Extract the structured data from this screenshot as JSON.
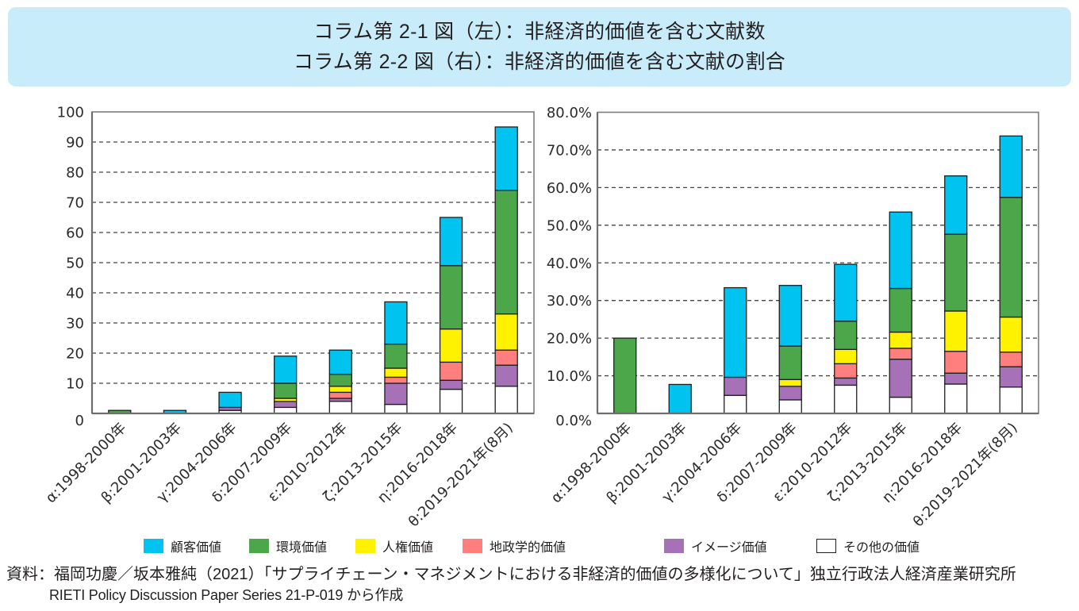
{
  "header": {
    "title_line1": "コラム第 2-1 図（左）：非経済的価値を含む文献数",
    "title_line2": "コラム第 2-2 図（右）：非経済的価値を含む文献の割合"
  },
  "legend": [
    {
      "key": "customer",
      "label": "顧客価値",
      "color": "#00c3f0"
    },
    {
      "key": "environment",
      "label": "環境価値",
      "color": "#4ca64a"
    },
    {
      "key": "human-rights",
      "label": "人権価値",
      "color": "#fff200"
    },
    {
      "key": "geopolitical",
      "label": "地政学的価値",
      "color": "#ff7e7e"
    },
    {
      "key": "image",
      "label": "イメージ価値",
      "color": "#a671b6"
    },
    {
      "key": "other",
      "label": "その他の価値",
      "color": "#ffffff"
    }
  ],
  "chart_data": [
    {
      "type": "bar",
      "stacked": true,
      "title": "コラム第 2-1 図（左）：非経済的価値を含む文献数",
      "xlabel": "",
      "ylabel": "",
      "ylim": [
        0,
        100
      ],
      "yticks": [
        0,
        10,
        20,
        30,
        40,
        50,
        60,
        70,
        80,
        90,
        100
      ],
      "ytick_labels": [
        "0",
        "10",
        "20",
        "30",
        "40",
        "50",
        "60",
        "70",
        "80",
        "90",
        "100"
      ],
      "grid": true,
      "legend_position": "bottom",
      "categories": [
        "α:1998-2000年",
        "β:2001-2003年",
        "γ:2004-2006年",
        "δ:2007-2009年",
        "ε:2010-2012年",
        "ζ:2013-2015年",
        "η:2016-2018年",
        "θ:2019-2021年(8月)"
      ],
      "series": [
        {
          "key": "customer",
          "name": "顧客価値",
          "values": [
            0,
            1,
            5,
            9,
            8,
            14,
            16,
            21
          ]
        },
        {
          "key": "environment",
          "name": "環境価値",
          "values": [
            1,
            0,
            0,
            5,
            4,
            8,
            21,
            41
          ]
        },
        {
          "key": "human-rights",
          "name": "人権価値",
          "values": [
            0,
            0,
            0,
            1,
            2,
            3,
            11,
            12
          ]
        },
        {
          "key": "geopolitical",
          "name": "地政学的価値",
          "values": [
            0,
            0,
            0,
            0,
            2,
            2,
            6,
            5
          ]
        },
        {
          "key": "image",
          "name": "イメージ価値",
          "values": [
            0,
            0,
            1,
            2,
            1,
            7,
            3,
            7
          ]
        },
        {
          "key": "other",
          "name": "その他の価値",
          "values": [
            0,
            0,
            1,
            2,
            4,
            3,
            8,
            9
          ]
        }
      ],
      "totals": [
        1,
        1,
        7,
        19,
        21,
        37,
        65,
        95
      ]
    },
    {
      "type": "bar",
      "stacked": true,
      "title": "コラム第 2-2 図（右）：非経済的価値を含む文献の割合",
      "xlabel": "",
      "ylabel": "",
      "ylim": [
        0,
        80
      ],
      "yticks": [
        0,
        10,
        20,
        30,
        40,
        50,
        60,
        70,
        80
      ],
      "ytick_labels": [
        "0.0%",
        "10.0%",
        "20.0%",
        "30.0%",
        "40.0%",
        "50.0%",
        "60.0%",
        "70.0%",
        "80.0%"
      ],
      "grid": true,
      "legend_position": "bottom",
      "categories": [
        "α:1998-2000年",
        "β:2001-2003年",
        "γ:2004-2006年",
        "δ:2007-2009年",
        "ε:2010-2012年",
        "ζ:2013-2015年",
        "η:2016-2018年",
        "θ:2019-2021年(8月)"
      ],
      "series": [
        {
          "key": "customer",
          "name": "顧客価値",
          "values": [
            0,
            7.7,
            23.8,
            16.1,
            15.1,
            20.3,
            15.5,
            16.3
          ]
        },
        {
          "key": "environment",
          "name": "環境価値",
          "values": [
            20.0,
            0,
            0,
            8.9,
            7.5,
            11.6,
            20.4,
            31.8
          ]
        },
        {
          "key": "human-rights",
          "name": "人権価値",
          "values": [
            0,
            0,
            0,
            1.8,
            3.8,
            4.3,
            10.7,
            9.3
          ]
        },
        {
          "key": "geopolitical",
          "name": "地政学的価値",
          "values": [
            0,
            0,
            0,
            0,
            3.8,
            2.9,
            5.8,
            3.9
          ]
        },
        {
          "key": "image",
          "name": "イメージ価値",
          "values": [
            0,
            0,
            4.8,
            3.6,
            1.9,
            10.1,
            2.9,
            5.4
          ]
        },
        {
          "key": "other",
          "name": "その他の価値",
          "values": [
            0,
            0,
            4.8,
            3.6,
            7.5,
            4.3,
            7.8,
            7.0
          ]
        }
      ],
      "totals": [
        20.0,
        7.7,
        33.3,
        34.0,
        39.6,
        53.6,
        63.1,
        73.6
      ]
    }
  ],
  "source": {
    "line1": "資料：福岡功慶／坂本雅純（2021）「サプライチェーン・マネジメントにおける非経済的価値の多様化について」独立行政法人経済産業研究所",
    "line2": "RIETI Policy Discussion Paper Series 21-P-019 から作成"
  }
}
